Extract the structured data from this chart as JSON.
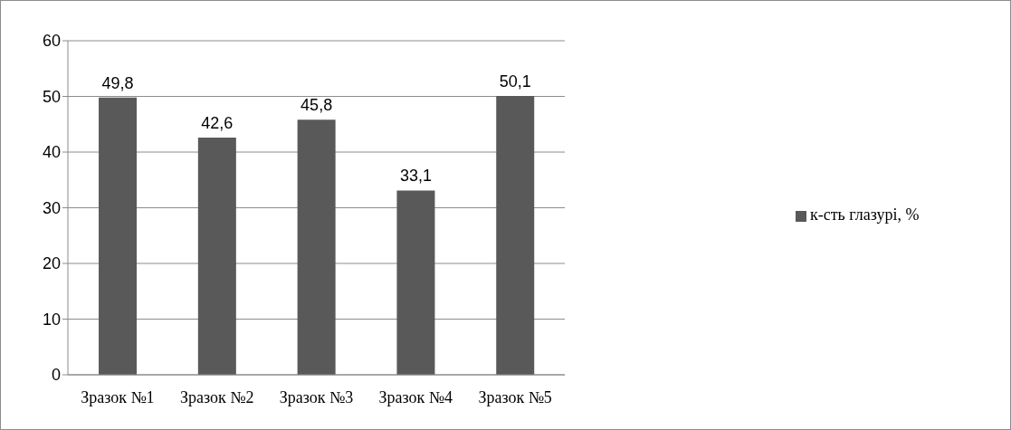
{
  "chart_data": {
    "type": "bar",
    "categories": [
      "Зразок №1",
      "Зразок №2",
      "Зразок №3",
      "Зразок №4",
      "Зразок №5"
    ],
    "series": [
      {
        "name": "к-сть глазурі, %",
        "color": "#595959",
        "values": [
          49.8,
          42.6,
          45.8,
          33.1,
          50.1
        ],
        "value_labels": [
          "49,8",
          "42,6",
          "45,8",
          "33,1",
          "50,1"
        ]
      }
    ],
    "ylim": [
      0,
      60
    ],
    "yticks": [
      0,
      10,
      20,
      30,
      40,
      50,
      60
    ],
    "grid": "y",
    "legend": "right"
  }
}
